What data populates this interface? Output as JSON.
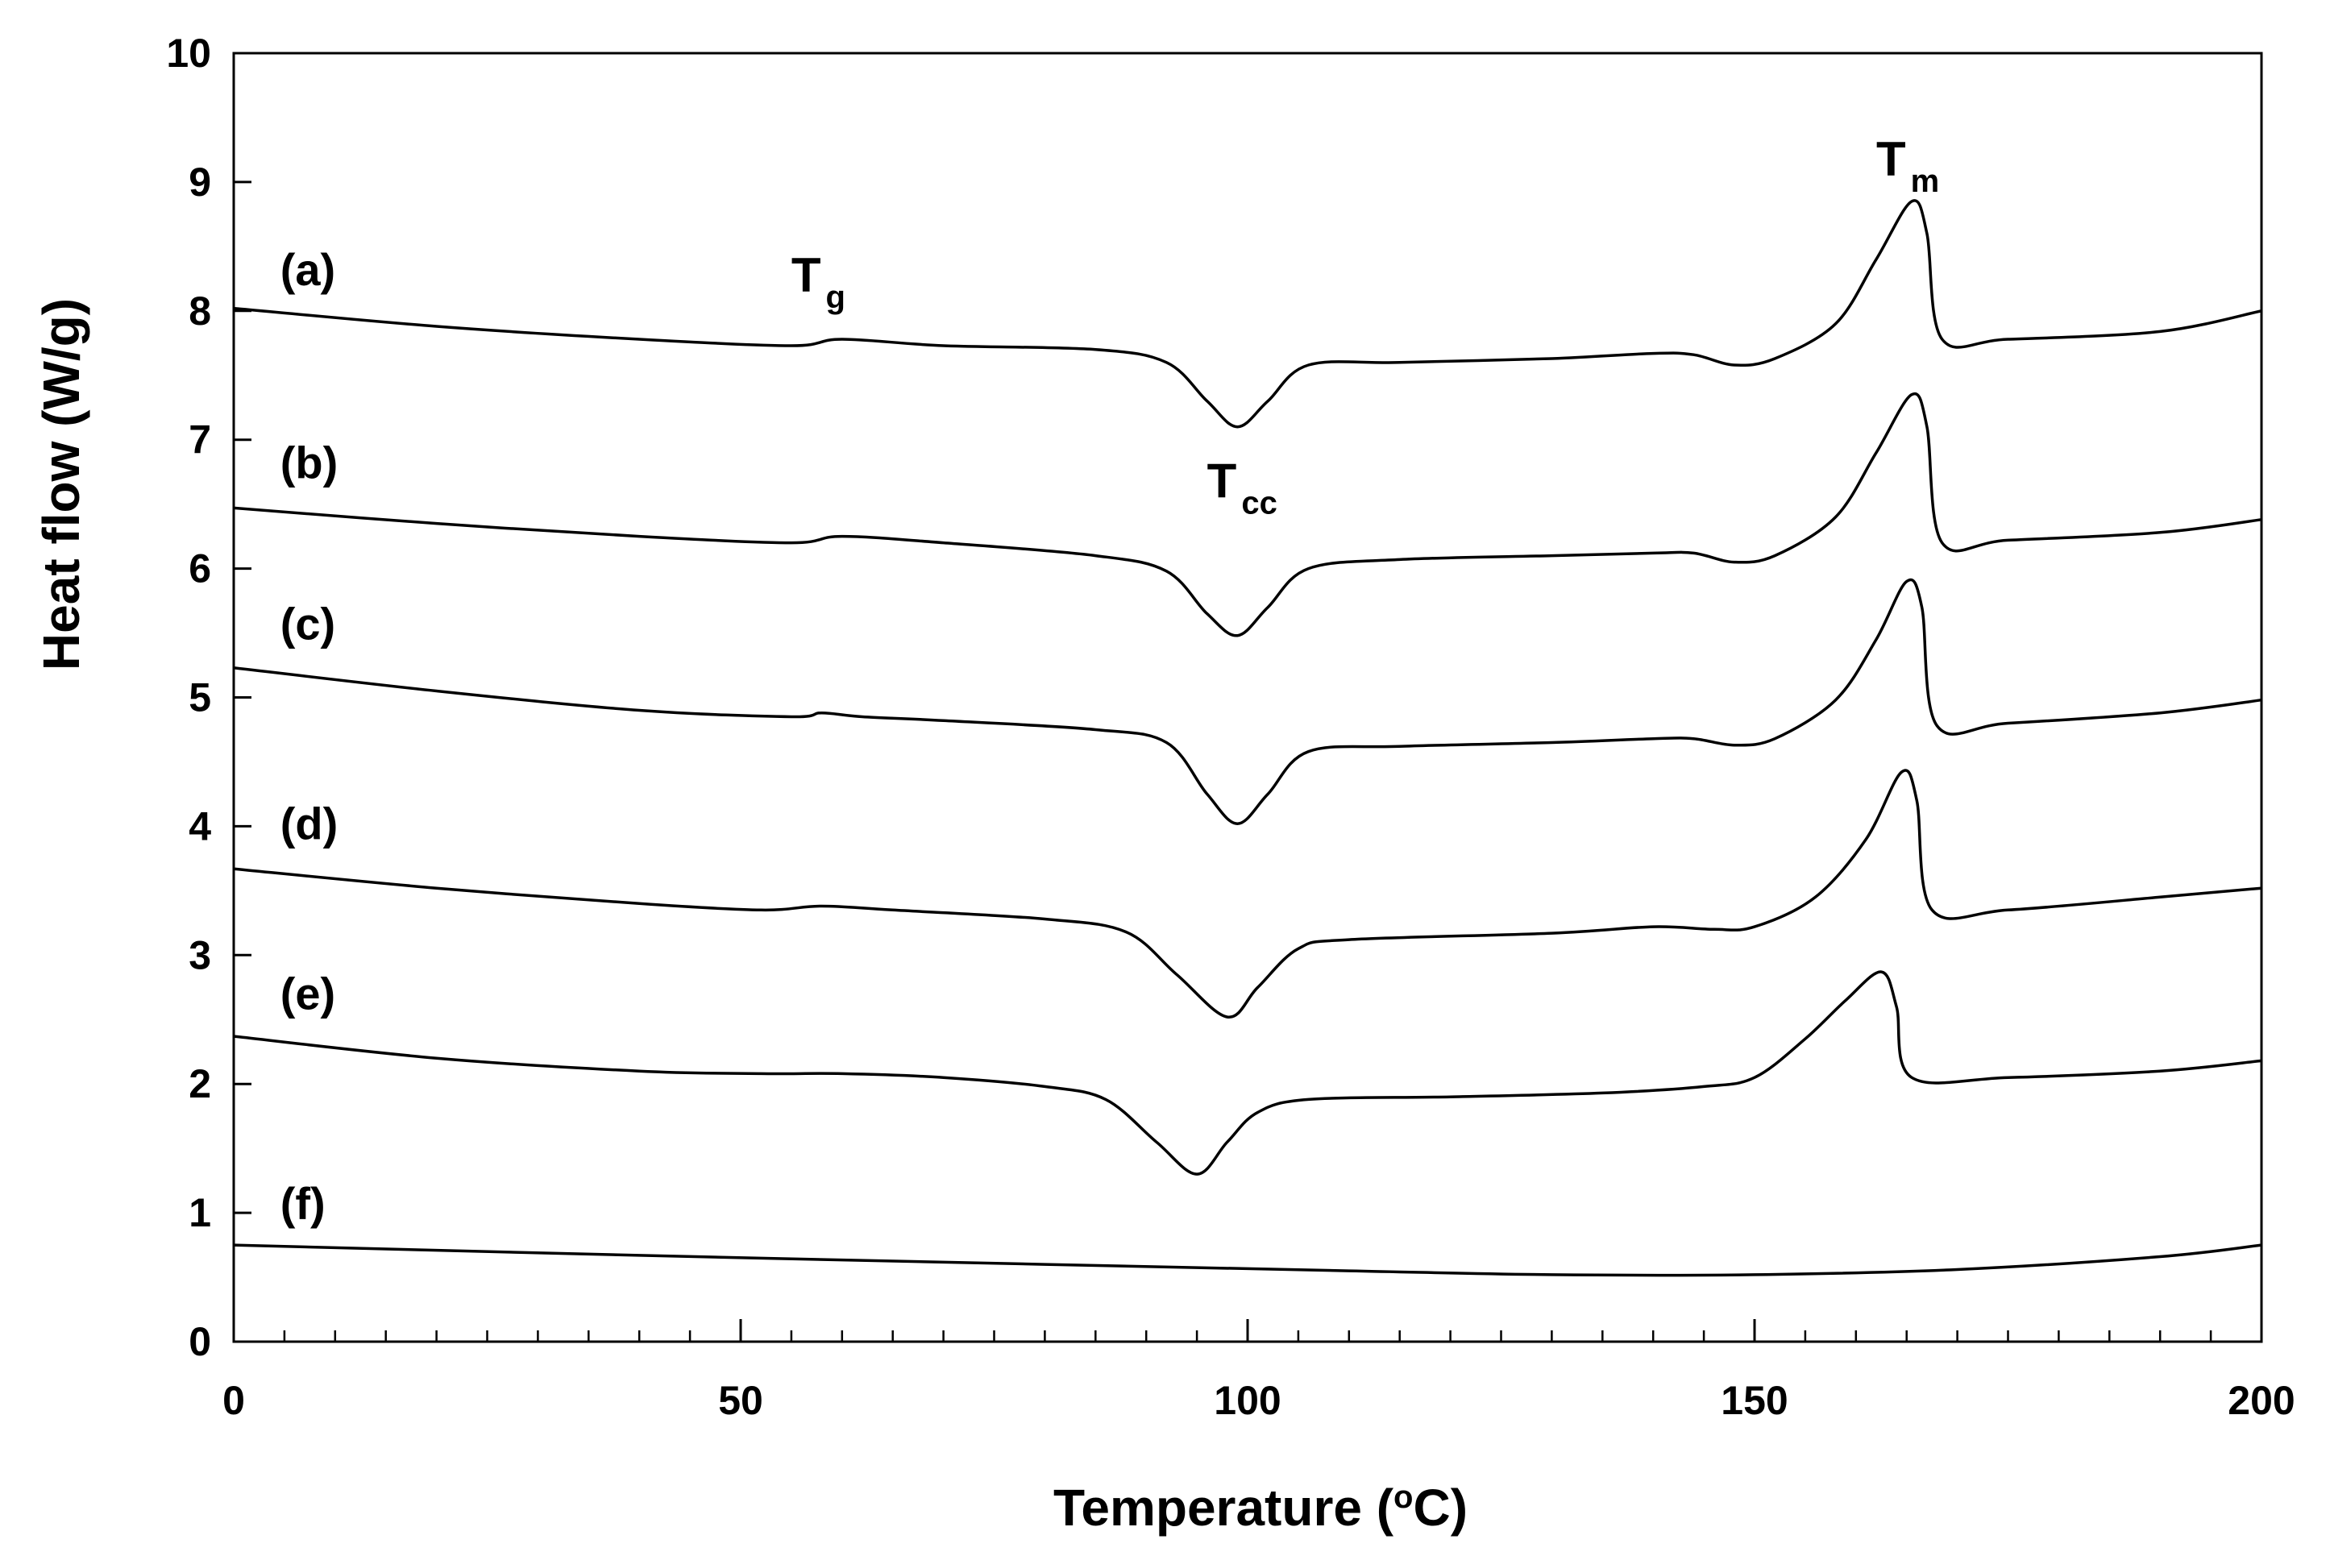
{
  "chart_data": {
    "type": "line",
    "xlabel": "Temperature (",
    "xlabel_superscript": "o",
    "xlabel_suffix": "C)",
    "ylabel": "Heat flow (W/g)",
    "xlim": [
      0,
      200
    ],
    "ylim": [
      0,
      10
    ],
    "x_ticks": [
      "0",
      "50",
      "100",
      "150",
      "200"
    ],
    "y_ticks": [
      "0",
      "1",
      "2",
      "3",
      "4",
      "5",
      "6",
      "7",
      "8",
      "9",
      "10"
    ],
    "grid": false,
    "colors": {
      "line": "#000000",
      "axis": "#000000"
    },
    "series": [
      {
        "name": "(a)",
        "label_pos": [
          3,
          8.2
        ],
        "points": [
          [
            0,
            8.02
          ],
          [
            20,
            7.88
          ],
          [
            40,
            7.78
          ],
          [
            55,
            7.73
          ],
          [
            60,
            7.78
          ],
          [
            70,
            7.73
          ],
          [
            85,
            7.7
          ],
          [
            92,
            7.6
          ],
          [
            96,
            7.3
          ],
          [
            99,
            7.1
          ],
          [
            102,
            7.3
          ],
          [
            106,
            7.58
          ],
          [
            115,
            7.6
          ],
          [
            130,
            7.63
          ],
          [
            140,
            7.67
          ],
          [
            144,
            7.66
          ],
          [
            148,
            7.58
          ],
          [
            152,
            7.63
          ],
          [
            158,
            7.9
          ],
          [
            162,
            8.4
          ],
          [
            165.5,
            8.85
          ],
          [
            167,
            8.6
          ],
          [
            168.5,
            7.78
          ],
          [
            175,
            7.78
          ],
          [
            190,
            7.84
          ],
          [
            200,
            8.0
          ]
        ]
      },
      {
        "name": "(b)",
        "label_pos": [
          3,
          6.7
        ],
        "points": [
          [
            0,
            6.47
          ],
          [
            20,
            6.35
          ],
          [
            40,
            6.25
          ],
          [
            55,
            6.2
          ],
          [
            60,
            6.25
          ],
          [
            70,
            6.2
          ],
          [
            85,
            6.1
          ],
          [
            92,
            5.98
          ],
          [
            96,
            5.65
          ],
          [
            99,
            5.48
          ],
          [
            102,
            5.7
          ],
          [
            106,
            6.0
          ],
          [
            115,
            6.07
          ],
          [
            130,
            6.1
          ],
          [
            140,
            6.12
          ],
          [
            144,
            6.12
          ],
          [
            148,
            6.05
          ],
          [
            152,
            6.1
          ],
          [
            158,
            6.4
          ],
          [
            162,
            6.9
          ],
          [
            165.5,
            7.35
          ],
          [
            167,
            7.1
          ],
          [
            168.5,
            6.2
          ],
          [
            175,
            6.22
          ],
          [
            190,
            6.28
          ],
          [
            200,
            6.38
          ]
        ]
      },
      {
        "name": "(c)",
        "label_pos": [
          3,
          5.45
        ],
        "points": [
          [
            0,
            5.23
          ],
          [
            20,
            5.05
          ],
          [
            40,
            4.9
          ],
          [
            55,
            4.85
          ],
          [
            58,
            4.88
          ],
          [
            62,
            4.85
          ],
          [
            70,
            4.82
          ],
          [
            85,
            4.75
          ],
          [
            92,
            4.65
          ],
          [
            96,
            4.25
          ],
          [
            99,
            4.02
          ],
          [
            102,
            4.25
          ],
          [
            106,
            4.58
          ],
          [
            115,
            4.62
          ],
          [
            130,
            4.65
          ],
          [
            140,
            4.68
          ],
          [
            144,
            4.68
          ],
          [
            148,
            4.63
          ],
          [
            152,
            4.68
          ],
          [
            158,
            4.98
          ],
          [
            162,
            5.45
          ],
          [
            165,
            5.9
          ],
          [
            166.5,
            5.7
          ],
          [
            168,
            4.78
          ],
          [
            175,
            4.8
          ],
          [
            190,
            4.88
          ],
          [
            200,
            4.98
          ]
        ]
      },
      {
        "name": "(d)",
        "label_pos": [
          3,
          3.9
        ],
        "points": [
          [
            0,
            3.67
          ],
          [
            20,
            3.52
          ],
          [
            40,
            3.4
          ],
          [
            52,
            3.35
          ],
          [
            58,
            3.38
          ],
          [
            65,
            3.35
          ],
          [
            80,
            3.28
          ],
          [
            88,
            3.18
          ],
          [
            93,
            2.85
          ],
          [
            98,
            2.52
          ],
          [
            101,
            2.75
          ],
          [
            105,
            3.05
          ],
          [
            110,
            3.12
          ],
          [
            130,
            3.17
          ],
          [
            140,
            3.22
          ],
          [
            146,
            3.2
          ],
          [
            150,
            3.22
          ],
          [
            156,
            3.45
          ],
          [
            161,
            3.9
          ],
          [
            164.5,
            4.42
          ],
          [
            166,
            4.2
          ],
          [
            167.5,
            3.35
          ],
          [
            175,
            3.35
          ],
          [
            190,
            3.45
          ],
          [
            200,
            3.52
          ]
        ]
      },
      {
        "name": "(e)",
        "label_pos": [
          3,
          2.58
        ],
        "points": [
          [
            0,
            2.37
          ],
          [
            20,
            2.2
          ],
          [
            40,
            2.1
          ],
          [
            52,
            2.08
          ],
          [
            60,
            2.08
          ],
          [
            70,
            2.05
          ],
          [
            80,
            1.98
          ],
          [
            86,
            1.88
          ],
          [
            91,
            1.55
          ],
          [
            95,
            1.3
          ],
          [
            98,
            1.55
          ],
          [
            101,
            1.78
          ],
          [
            106,
            1.88
          ],
          [
            120,
            1.9
          ],
          [
            135,
            1.93
          ],
          [
            145,
            1.98
          ],
          [
            150,
            2.05
          ],
          [
            155,
            2.35
          ],
          [
            159,
            2.65
          ],
          [
            162.5,
            2.87
          ],
          [
            164,
            2.6
          ],
          [
            165.5,
            2.05
          ],
          [
            175,
            2.05
          ],
          [
            190,
            2.1
          ],
          [
            200,
            2.18
          ]
        ]
      },
      {
        "name": "(f)",
        "label_pos": [
          3,
          0.95
        ],
        "points": [
          [
            0,
            0.75
          ],
          [
            40,
            0.67
          ],
          [
            80,
            0.6
          ],
          [
            110,
            0.55
          ],
          [
            130,
            0.52
          ],
          [
            150,
            0.52
          ],
          [
            170,
            0.56
          ],
          [
            190,
            0.66
          ],
          [
            200,
            0.75
          ]
        ]
      }
    ],
    "annotations": [
      {
        "main": "T",
        "sub": "g",
        "at": [
          55,
          8.15
        ]
      },
      {
        "main": "T",
        "sub": "cc",
        "at": [
          96,
          6.55
        ]
      },
      {
        "main": "T",
        "sub": "m",
        "at": [
          162,
          9.05
        ]
      }
    ]
  }
}
